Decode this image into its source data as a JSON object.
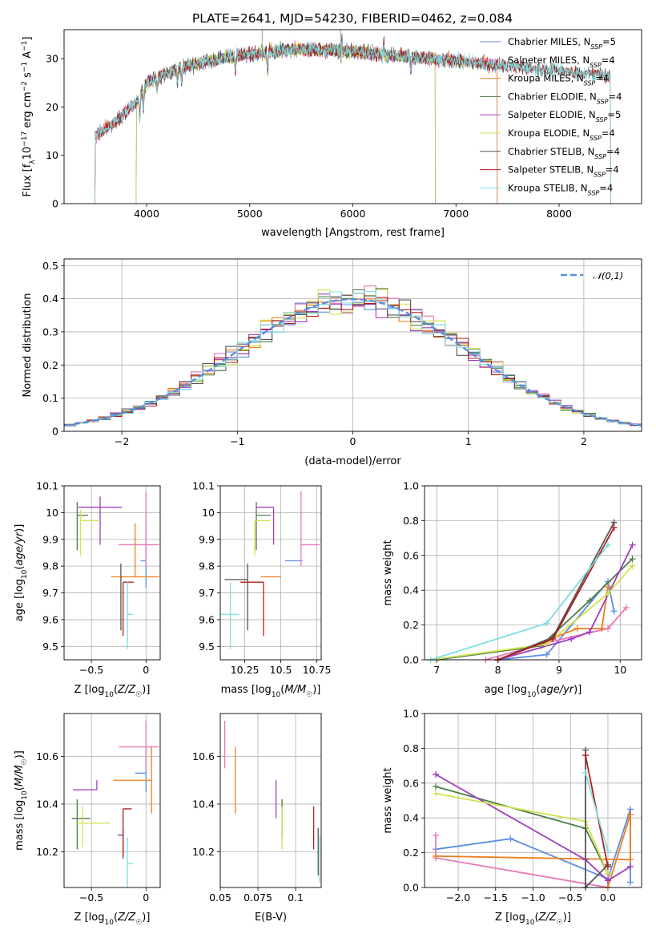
{
  "figure": {
    "title": "PLATE=2641, MJD=54230, FIBERID=0462, z=0.084"
  },
  "colors": {
    "Chabrier MILES": "#5a8ee0",
    "Salpeter MILES": "#e878b8",
    "Kroupa MILES": "#ee7f1e",
    "Chabrier ELODIE": "#4d7d47",
    "Salpeter ELODIE": "#a13bbf",
    "Kroupa ELODIE": "#cfe34c",
    "Chabrier STELIB": "#555555",
    "Salpeter STELIB": "#b01e1e",
    "Kroupa STELIB": "#7fdde0"
  },
  "chart_data": [
    {
      "id": "spectrum",
      "type": "line",
      "xlabel": "wavelength [Angstrom, rest frame]",
      "ylabel": "Flux [fλ10⁻¹⁷ erg cm⁻² s⁻¹ A⁻¹]",
      "xlim": [
        3200,
        8800
      ],
      "ylim": [
        0,
        36
      ],
      "xticks": [
        4000,
        5000,
        6000,
        7000,
        8000
      ],
      "yticks": [
        0,
        10,
        20,
        30
      ],
      "grid": false,
      "legend_position": "top-right",
      "series": [
        {
          "name": "Chabrier MILES, N_SSP=5",
          "color_key": "Chabrier MILES",
          "x_range": [
            3500,
            7400
          ]
        },
        {
          "name": "Salpeter MILES, N_SSP=4",
          "color_key": "Salpeter MILES",
          "x_range": [
            3500,
            7400
          ]
        },
        {
          "name": "Kroupa MILES, N_SSP=4",
          "color_key": "Kroupa MILES",
          "x_range": [
            3500,
            7400
          ]
        },
        {
          "name": "Chabrier ELODIE, N_SSP=4",
          "color_key": "Chabrier ELODIE",
          "x_range": [
            3900,
            6800
          ]
        },
        {
          "name": "Salpeter ELODIE, N_SSP=5",
          "color_key": "Salpeter ELODIE",
          "x_range": [
            3900,
            6800
          ]
        },
        {
          "name": "Kroupa ELODIE, N_SSP=4",
          "color_key": "Kroupa ELODIE",
          "x_range": [
            3900,
            6800
          ]
        },
        {
          "name": "Chabrier STELIB, N_SSP=4",
          "color_key": "Chabrier STELIB",
          "x_range": [
            3500,
            8500
          ]
        },
        {
          "name": "Salpeter STELIB, N_SSP=4",
          "color_key": "Salpeter STELIB",
          "x_range": [
            3500,
            8500
          ]
        },
        {
          "name": "Kroupa STELIB, N_SSP=4",
          "color_key": "Kroupa STELIB",
          "x_range": [
            3500,
            8500
          ]
        }
      ],
      "continuum": [
        [
          3500,
          14
        ],
        [
          3700,
          17
        ],
        [
          3900,
          21
        ],
        [
          4000,
          25
        ],
        [
          4300,
          28
        ],
        [
          4700,
          30
        ],
        [
          5000,
          31
        ],
        [
          5500,
          32
        ],
        [
          6000,
          31.5
        ],
        [
          6500,
          30.5
        ],
        [
          7000,
          29.5
        ],
        [
          7500,
          28.5
        ],
        [
          8000,
          27.5
        ],
        [
          8500,
          26.5
        ]
      ]
    },
    {
      "id": "residual-histogram",
      "type": "line",
      "xlabel": "(data-model)/error",
      "ylabel": "Normed distribution",
      "xlim": [
        -2.5,
        2.5
      ],
      "ylim": [
        0,
        0.52
      ],
      "xticks": [
        -2,
        -1,
        0,
        1,
        2
      ],
      "yticks": [
        0.0,
        0.1,
        0.2,
        0.3,
        0.4,
        0.5
      ],
      "grid": true,
      "legend_position": "top-right",
      "reference_curve": {
        "name": "𝒩(0,1)",
        "color": "#5a8ee0",
        "style": "dashed"
      },
      "bin_edges_range": [
        -2.5,
        2.5
      ],
      "bin_width": 0.1,
      "series_note": "nine step histograms, one per model, following the standard normal"
    },
    {
      "id": "age-vs-Z",
      "type": "scatter",
      "xlabel": "Z [log10(Z/Z☉)]",
      "ylabel": "age [log10(age/yr)]",
      "xlim": [
        -0.75,
        0.13
      ],
      "ylim": [
        9.45,
        10.1
      ],
      "xticks": [
        -0.5,
        0.0
      ],
      "yticks": [
        9.5,
        9.6,
        9.7,
        9.8,
        9.9,
        10.0,
        10.1
      ],
      "grid": true,
      "points": [
        {
          "key": "Chabrier MILES",
          "x": 0.0,
          "xerr": [
            0.05,
            0.0
          ],
          "y": 9.82,
          "yerr": [
            0.1,
            0.14
          ]
        },
        {
          "key": "Salpeter MILES",
          "x": 0.0,
          "xerr": [
            0.25,
            0.12
          ],
          "y": 9.88,
          "yerr": [
            0.08,
            0.2
          ]
        },
        {
          "key": "Kroupa MILES",
          "x": -0.1,
          "xerr": [
            0.22,
            0.22
          ],
          "y": 9.76,
          "yerr": [
            0.0,
            0.2
          ]
        },
        {
          "key": "Chabrier ELODIE",
          "x": -0.63,
          "xerr": [
            0.0,
            0.1
          ],
          "y": 9.99,
          "yerr": [
            0.13,
            0.05
          ]
        },
        {
          "key": "Salpeter ELODIE",
          "x": -0.42,
          "xerr": [
            0.2,
            0.2
          ],
          "y": 10.02,
          "yerr": [
            0.14,
            0.04
          ]
        },
        {
          "key": "Kroupa ELODIE",
          "x": -0.6,
          "xerr": [
            0.0,
            0.18
          ],
          "y": 9.97,
          "yerr": [
            0.13,
            0.04
          ]
        },
        {
          "key": "Chabrier STELIB",
          "x": -0.23,
          "xerr": [
            0.0,
            0.0
          ],
          "y": 9.75,
          "yerr": [
            0.19,
            0.06
          ]
        },
        {
          "key": "Salpeter STELIB",
          "x": -0.21,
          "xerr": [
            0.0,
            0.1
          ],
          "y": 9.74,
          "yerr": [
            0.2,
            0.0
          ]
        },
        {
          "key": "Kroupa STELIB",
          "x": -0.17,
          "xerr": [
            0.0,
            0.05
          ],
          "y": 9.62,
          "yerr": [
            0.13,
            0.12
          ]
        }
      ]
    },
    {
      "id": "age-vs-mass",
      "type": "scatter",
      "xlabel": "mass [log10(M/M☉)]",
      "ylabel": "",
      "xlim": [
        10.08,
        10.78
      ],
      "ylim": [
        9.45,
        10.1
      ],
      "xticks": [
        10.25,
        10.5,
        10.75
      ],
      "yticks": [
        9.5,
        9.6,
        9.7,
        9.8,
        9.9,
        10.0,
        10.1
      ],
      "grid": true,
      "points": [
        {
          "key": "Chabrier MILES",
          "x": 10.53,
          "xerr": [
            0.0,
            0.12
          ],
          "y": 9.82,
          "yerr": [
            0.0,
            0.0
          ]
        },
        {
          "key": "Salpeter MILES",
          "x": 10.64,
          "xerr": [
            0.0,
            0.13
          ],
          "y": 9.88,
          "yerr": [
            0.08,
            0.2
          ]
        },
        {
          "key": "Kroupa MILES",
          "x": 10.5,
          "xerr": [
            0.14,
            0.0
          ],
          "y": 9.76,
          "yerr": [
            0.0,
            0.0
          ]
        },
        {
          "key": "Chabrier ELODIE",
          "x": 10.33,
          "xerr": [
            0.0,
            0.1
          ],
          "y": 9.99,
          "yerr": [
            0.13,
            0.05
          ]
        },
        {
          "key": "Salpeter ELODIE",
          "x": 10.45,
          "xerr": [
            0.12,
            0.0
          ],
          "y": 10.02,
          "yerr": [
            0.14,
            0.0
          ]
        },
        {
          "key": "Kroupa ELODIE",
          "x": 10.32,
          "xerr": [
            0.0,
            0.11
          ],
          "y": 9.97,
          "yerr": [
            0.13,
            0.0
          ]
        },
        {
          "key": "Chabrier STELIB",
          "x": 10.27,
          "xerr": [
            0.16,
            0.0
          ],
          "y": 9.75,
          "yerr": [
            0.19,
            0.06
          ]
        },
        {
          "key": "Salpeter STELIB",
          "x": 10.38,
          "xerr": [
            0.16,
            0.0
          ],
          "y": 9.74,
          "yerr": [
            0.2,
            0.0
          ]
        },
        {
          "key": "Kroupa STELIB",
          "x": 10.15,
          "xerr": [
            0.07,
            0.06
          ],
          "y": 9.62,
          "yerr": [
            0.13,
            0.12
          ]
        }
      ]
    },
    {
      "id": "mass-weight-vs-age",
      "type": "line",
      "xlabel": "age [log10(age/yr)]",
      "ylabel": "mass weight",
      "xlim": [
        6.8,
        10.35
      ],
      "ylim": [
        0,
        1.0
      ],
      "xticks": [
        7,
        8,
        9,
        10
      ],
      "yticks": [
        0.0,
        0.2,
        0.4,
        0.6,
        0.8,
        1.0
      ],
      "grid": true,
      "series": [
        {
          "key": "Chabrier MILES",
          "x": [
            8.0,
            8.8,
            9.8,
            9.9
          ],
          "y": [
            0.0,
            0.03,
            0.45,
            0.28
          ]
        },
        {
          "key": "Salpeter MILES",
          "x": [
            7.8,
            8.7,
            9.8,
            10.1
          ],
          "y": [
            0.0,
            0.09,
            0.18,
            0.3
          ]
        },
        {
          "key": "Kroupa MILES",
          "x": [
            8.0,
            9.3,
            9.7,
            9.8
          ],
          "y": [
            0.0,
            0.18,
            0.18,
            0.42
          ]
        },
        {
          "key": "Chabrier ELODIE",
          "x": [
            7.0,
            8.7,
            9.5,
            10.2
          ],
          "y": [
            0.0,
            0.08,
            0.34,
            0.58
          ]
        },
        {
          "key": "Salpeter ELODIE",
          "x": [
            8.0,
            9.2,
            9.5,
            10.2
          ],
          "y": [
            0.0,
            0.12,
            0.16,
            0.66
          ]
        },
        {
          "key": "Kroupa ELODIE",
          "x": [
            6.9,
            8.8,
            9.8,
            10.2
          ],
          "y": [
            0.0,
            0.09,
            0.38,
            0.54
          ]
        },
        {
          "key": "Chabrier STELIB",
          "x": [
            8.0,
            8.9,
            9.9
          ],
          "y": [
            0.0,
            0.13,
            0.79
          ]
        },
        {
          "key": "Salpeter STELIB",
          "x": [
            8.0,
            8.9,
            9.9
          ],
          "y": [
            0.0,
            0.12,
            0.76
          ]
        },
        {
          "key": "Kroupa STELIB",
          "x": [
            6.9,
            8.8,
            9.8
          ],
          "y": [
            0.0,
            0.21,
            0.66
          ]
        }
      ]
    },
    {
      "id": "mass-vs-Z",
      "type": "scatter",
      "xlabel": "Z [log10(Z/Z☉)]",
      "ylabel": "mass [log10(M/M☉)]",
      "xlim": [
        -0.75,
        0.13
      ],
      "ylim": [
        10.05,
        10.78
      ],
      "xticks": [
        -0.5,
        0.0
      ],
      "yticks": [
        10.2,
        10.4,
        10.6
      ],
      "grid": true,
      "points": [
        {
          "key": "Chabrier MILES",
          "x": 0.0,
          "xerr": [
            0.1,
            0.0
          ],
          "y": 10.53,
          "yerr": [
            0.08,
            0.1
          ]
        },
        {
          "key": "Salpeter MILES",
          "x": 0.0,
          "xerr": [
            0.25,
            0.12
          ],
          "y": 10.64,
          "yerr": [
            0.1,
            0.11
          ]
        },
        {
          "key": "Kroupa MILES",
          "x": 0.05,
          "xerr": [
            0.35,
            0.0
          ],
          "y": 10.5,
          "yerr": [
            0.14,
            0.14
          ]
        },
        {
          "key": "Chabrier ELODIE",
          "x": -0.63,
          "xerr": [
            0.05,
            0.12
          ],
          "y": 10.34,
          "yerr": [
            0.13,
            0.08
          ]
        },
        {
          "key": "Salpeter ELODIE",
          "x": -0.45,
          "xerr": [
            0.22,
            0.0
          ],
          "y": 10.46,
          "yerr": [
            0.0,
            0.04
          ]
        },
        {
          "key": "Kroupa ELODIE",
          "x": -0.58,
          "xerr": [
            0.07,
            0.25
          ],
          "y": 10.32,
          "yerr": [
            0.1,
            0.07
          ]
        },
        {
          "key": "Chabrier STELIB",
          "x": -0.21,
          "xerr": [
            0.05,
            0.0
          ],
          "y": 10.27,
          "yerr": [
            0.1,
            0.03
          ]
        },
        {
          "key": "Salpeter STELIB",
          "x": -0.21,
          "xerr": [
            0.0,
            0.08
          ],
          "y": 10.38,
          "yerr": [
            0.2,
            0.0
          ]
        },
        {
          "key": "Kroupa STELIB",
          "x": -0.17,
          "xerr": [
            0.0,
            0.05
          ],
          "y": 10.15,
          "yerr": [
            0.1,
            0.11
          ]
        }
      ]
    },
    {
      "id": "ebv",
      "type": "scatter",
      "xlabel": "E(B-V)",
      "ylabel": "",
      "xlim": [
        0.05,
        0.117
      ],
      "ylim": [
        10.05,
        10.78
      ],
      "xticks": [
        0.05,
        0.075,
        0.1
      ],
      "yticks": [
        10.2,
        10.4,
        10.6
      ],
      "grid": true,
      "points": [
        {
          "key": "Salpeter MILES",
          "x": 0.053,
          "y": 10.65,
          "yerr": [
            0.1,
            0.1
          ]
        },
        {
          "key": "Kroupa MILES",
          "x": 0.06,
          "y": 10.5,
          "yerr": [
            0.14,
            0.14
          ]
        },
        {
          "key": "Salpeter ELODIE",
          "x": 0.087,
          "y": 10.42,
          "yerr": [
            0.08,
            0.08
          ]
        },
        {
          "key": "Chabrier ELODIE",
          "x": 0.091,
          "y": 10.34,
          "yerr": [
            0.08,
            0.08
          ]
        },
        {
          "key": "Kroupa ELODIE",
          "x": 0.091,
          "y": 10.3,
          "yerr": [
            0.09,
            0.09
          ]
        },
        {
          "key": "Salpeter STELIB",
          "x": 0.112,
          "y": 10.3,
          "yerr": [
            0.09,
            0.09
          ]
        },
        {
          "key": "Chabrier STELIB",
          "x": 0.115,
          "y": 10.2,
          "yerr": [
            0.1,
            0.1
          ]
        },
        {
          "key": "Kroupa STELIB",
          "x": 0.116,
          "y": 10.17,
          "yerr": [
            0.1,
            0.1
          ]
        }
      ]
    },
    {
      "id": "mass-weight-vs-Z",
      "type": "line",
      "xlabel": "Z [log10(Z/Z☉)]",
      "ylabel": "mass weight",
      "xlim": [
        -2.45,
        0.45
      ],
      "ylim": [
        0,
        1.0
      ],
      "xticks": [
        -2.0,
        -1.5,
        -1.0,
        -0.5,
        0.0
      ],
      "yticks": [
        0.0,
        0.2,
        0.4,
        0.6,
        0.8,
        1.0
      ],
      "grid": true,
      "series": [
        {
          "key": "Chabrier MILES",
          "x": [
            -2.3,
            -1.3,
            0.0,
            0.3,
            0.3
          ],
          "y": [
            0.22,
            0.28,
            0.05,
            0.45,
            0.03
          ]
        },
        {
          "key": "Salpeter MILES",
          "x": [
            -2.3,
            -2.3,
            0.0,
            0.0
          ],
          "y": [
            0.3,
            0.17,
            0.0,
            0.08
          ]
        },
        {
          "key": "Kroupa MILES",
          "x": [
            -2.3,
            0.3,
            0.3,
            0.0
          ],
          "y": [
            0.18,
            0.16,
            0.42,
            0.0
          ]
        },
        {
          "key": "Chabrier ELODIE",
          "x": [
            -2.3,
            -0.3,
            0.0
          ],
          "y": [
            0.58,
            0.34,
            0.08
          ]
        },
        {
          "key": "Salpeter ELODIE",
          "x": [
            -2.3,
            -0.3,
            0.0,
            0.3
          ],
          "y": [
            0.65,
            0.16,
            0.04,
            0.12
          ]
        },
        {
          "key": "Kroupa ELODIE",
          "x": [
            -2.3,
            -0.3,
            0.0
          ],
          "y": [
            0.54,
            0.38,
            0.08
          ]
        },
        {
          "key": "Chabrier STELIB",
          "x": [
            -0.3,
            -0.3,
            0.0
          ],
          "y": [
            0.79,
            0.0,
            0.13
          ]
        },
        {
          "key": "Salpeter STELIB",
          "x": [
            -0.3,
            0.0
          ],
          "y": [
            0.76,
            0.12
          ]
        },
        {
          "key": "Kroupa STELIB",
          "x": [
            -0.3,
            0.0
          ],
          "y": [
            0.66,
            0.21
          ]
        }
      ]
    }
  ]
}
